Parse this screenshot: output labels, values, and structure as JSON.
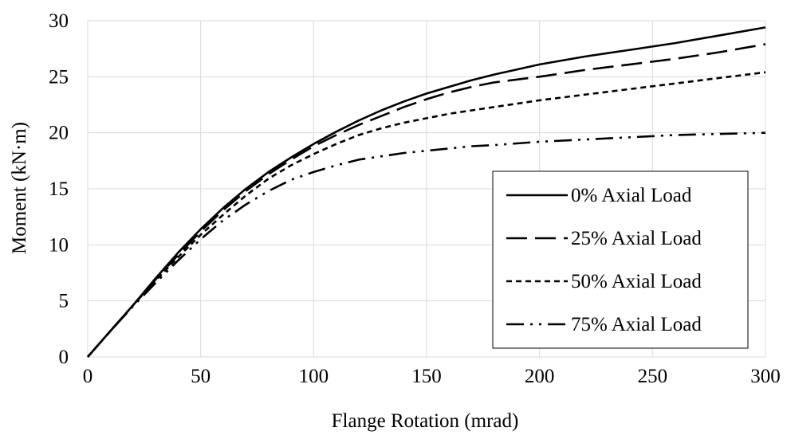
{
  "chart_data": {
    "type": "line",
    "title": "",
    "xlabel": "Flange Rotation (mrad)",
    "ylabel": "Moment (kN·m)",
    "xlim": [
      0,
      300
    ],
    "ylim": [
      0,
      30
    ],
    "xticks": [
      0,
      50,
      100,
      150,
      200,
      250,
      300
    ],
    "yticks": [
      0,
      5,
      10,
      15,
      20,
      25,
      30
    ],
    "grid": true,
    "legend": "right",
    "series": [
      {
        "name": "0% Axial Load",
        "style": "solid",
        "x": [
          0,
          10,
          20,
          30,
          40,
          50,
          60,
          70,
          80,
          90,
          100,
          110,
          120,
          130,
          140,
          150,
          160,
          170,
          180,
          200,
          220,
          240,
          260,
          280,
          300
        ],
        "y": [
          0,
          2.3,
          4.6,
          7.0,
          9.3,
          11.4,
          13.3,
          15.0,
          16.5,
          17.8,
          19.0,
          20.1,
          21.1,
          22.0,
          22.8,
          23.5,
          24.1,
          24.7,
          25.2,
          26.1,
          26.8,
          27.4,
          28.0,
          28.7,
          29.4
        ]
      },
      {
        "name": "25% Axial Load",
        "style": "longdash",
        "x": [
          0,
          10,
          20,
          30,
          40,
          50,
          60,
          70,
          80,
          90,
          100,
          110,
          120,
          130,
          140,
          150,
          160,
          170,
          180,
          200,
          220,
          240,
          260,
          280,
          300
        ],
        "y": [
          0,
          2.3,
          4.6,
          6.9,
          9.1,
          11.2,
          13.1,
          14.8,
          16.3,
          17.6,
          18.8,
          19.8,
          20.7,
          21.5,
          22.3,
          23.0,
          23.6,
          24.1,
          24.5,
          25.0,
          25.6,
          26.1,
          26.6,
          27.2,
          27.9
        ]
      },
      {
        "name": "50% Axial Load",
        "style": "shortdash",
        "x": [
          0,
          10,
          20,
          30,
          40,
          50,
          60,
          70,
          80,
          90,
          100,
          110,
          120,
          130,
          140,
          150,
          160,
          170,
          180,
          200,
          220,
          240,
          260,
          280,
          300
        ],
        "y": [
          0,
          2.3,
          4.6,
          6.8,
          8.9,
          10.9,
          12.7,
          14.4,
          15.9,
          17.1,
          18.1,
          19.0,
          19.8,
          20.4,
          20.9,
          21.3,
          21.7,
          22.0,
          22.3,
          22.9,
          23.4,
          23.9,
          24.4,
          24.9,
          25.4
        ]
      },
      {
        "name": "75% Axial Load",
        "style": "dashdotdot",
        "x": [
          0,
          10,
          20,
          30,
          40,
          50,
          60,
          70,
          80,
          90,
          100,
          110,
          120,
          130,
          140,
          150,
          160,
          170,
          180,
          200,
          220,
          240,
          260,
          280,
          300
        ],
        "y": [
          0,
          2.3,
          4.5,
          6.6,
          8.6,
          10.5,
          12.2,
          13.6,
          14.8,
          15.8,
          16.5,
          17.1,
          17.6,
          17.9,
          18.2,
          18.4,
          18.6,
          18.8,
          18.9,
          19.2,
          19.4,
          19.6,
          19.8,
          19.9,
          20.0
        ]
      }
    ]
  }
}
